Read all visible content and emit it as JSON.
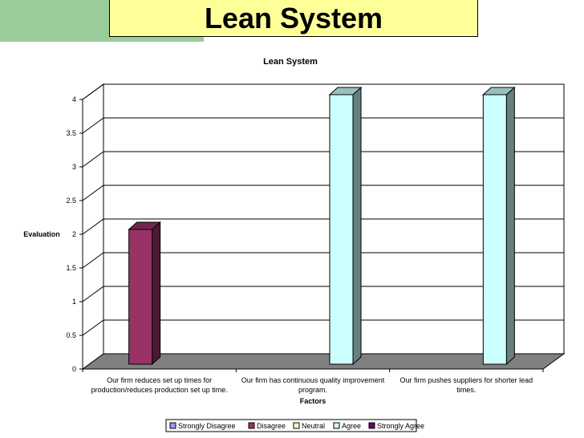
{
  "slide": {
    "title": "Lean System"
  },
  "chart_data": {
    "type": "bar",
    "title": "Lean System",
    "xlabel": "Factors",
    "ylabel": "Evaluation",
    "ylim": [
      0,
      4
    ],
    "yticks": [
      "0",
      "0.5",
      "1",
      "1.5",
      "2",
      "2.5",
      "3",
      "3.5",
      "4"
    ],
    "categories": [
      "Our firm reduces set up times for production/reduces production set up time.",
      "Our firm has continuous quality improvement program.",
      "Our firm pushes suppliers for shorter lead times."
    ],
    "series": [
      {
        "name": "Strongly Disagree",
        "color": "#9999ff",
        "values": [
          0,
          0,
          0
        ]
      },
      {
        "name": "Disagree",
        "color": "#993366",
        "values": [
          2,
          0,
          0
        ]
      },
      {
        "name": "Neutral",
        "color": "#ffffcc",
        "values": [
          0,
          0,
          0
        ]
      },
      {
        "name": "Agree",
        "color": "#ccffff",
        "values": [
          0,
          4,
          4
        ]
      },
      {
        "name": "Strongly Agree",
        "color": "#660066",
        "values": [
          0,
          0,
          0
        ]
      }
    ],
    "grid": true,
    "legend": "bottom"
  }
}
